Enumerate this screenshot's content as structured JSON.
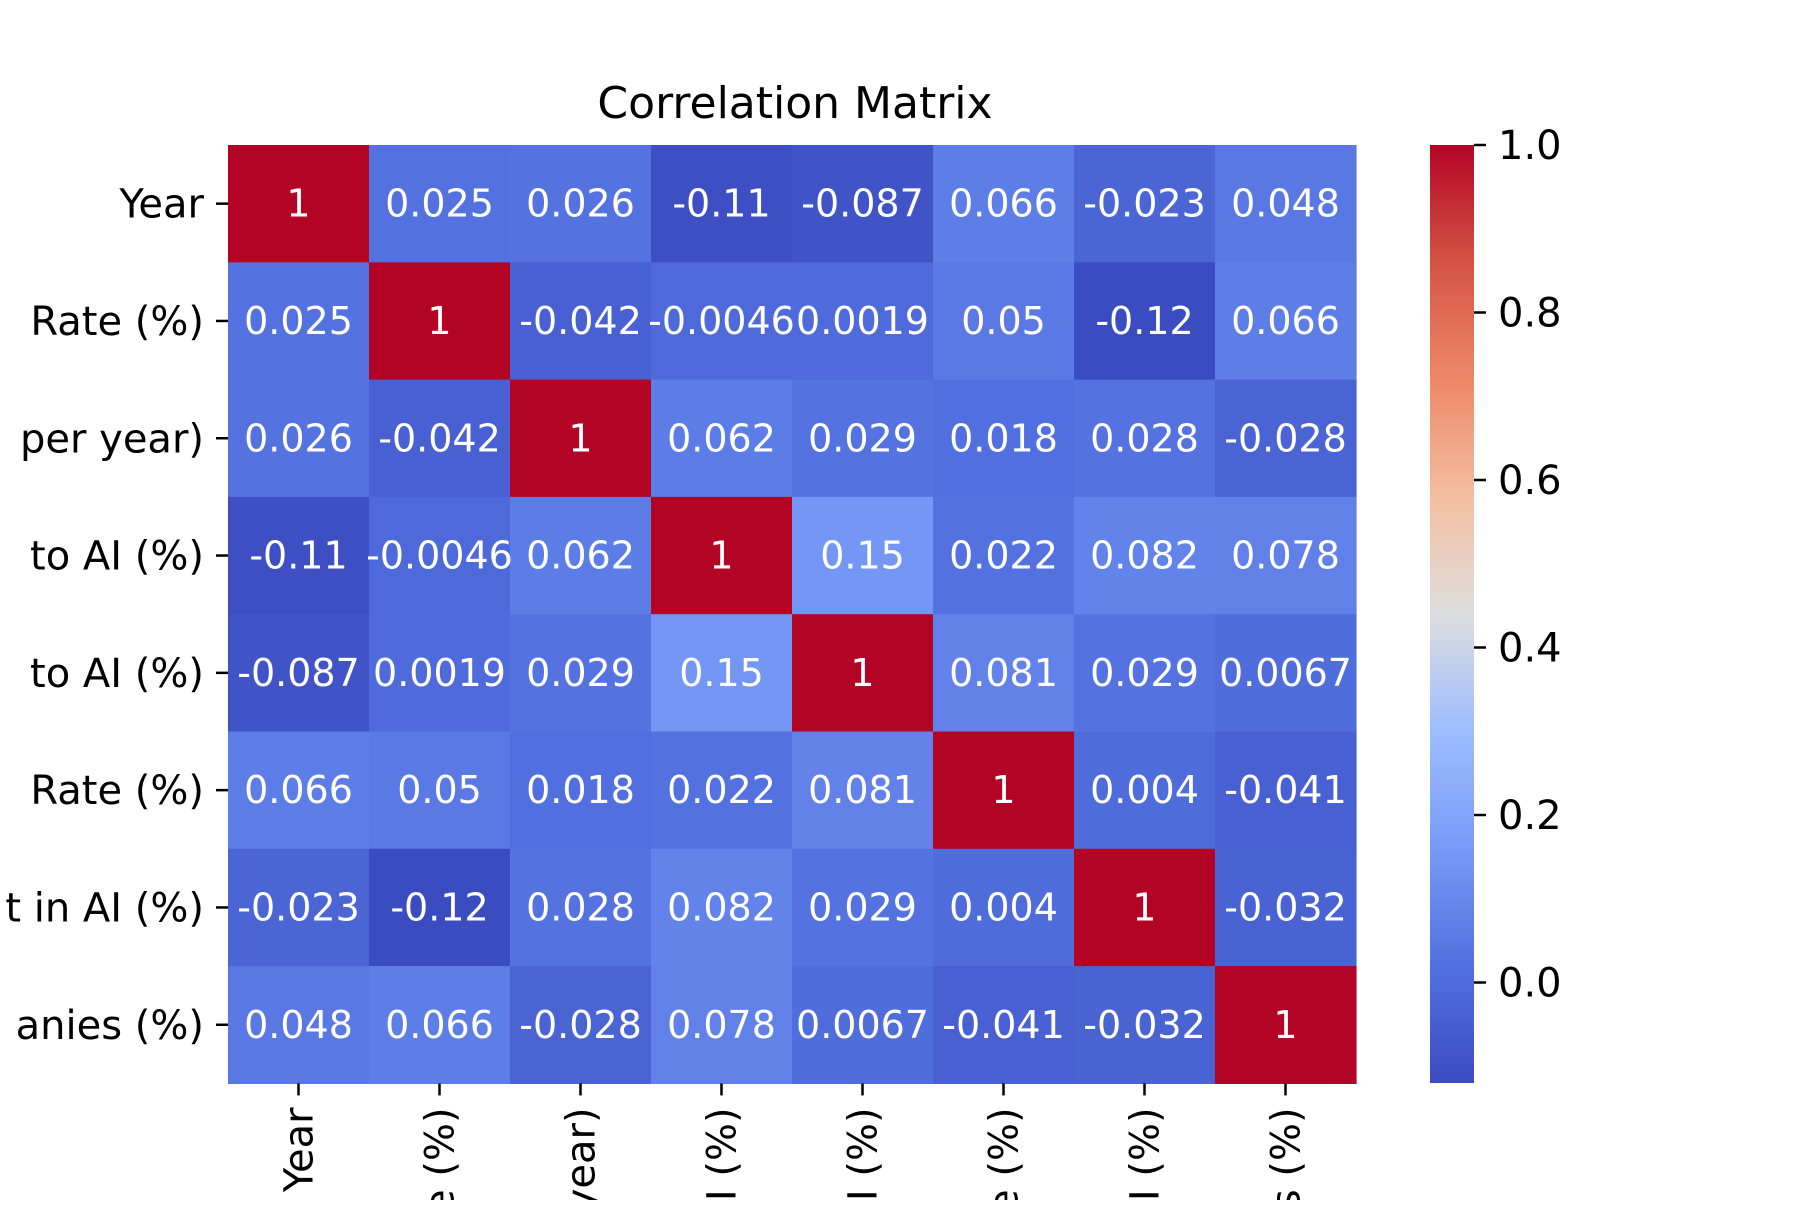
{
  "chart_data": {
    "type": "heatmap",
    "title": "Correlation Matrix",
    "colormap": "coolwarm",
    "row_labels": [
      "Year",
      "Rate (%)",
      "per year)",
      "to AI (%)",
      "to AI (%)",
      "Rate (%)",
      "t in AI (%)",
      "anies (%)"
    ],
    "col_labels": [
      "Year",
      "e (%)",
      "year)",
      "AI (%)",
      "AI (%)",
      "e (%)",
      "AI (%)",
      "s (%)"
    ],
    "values": [
      [
        1,
        0.025,
        0.026,
        -0.11,
        -0.087,
        0.066,
        -0.023,
        0.048
      ],
      [
        0.025,
        1,
        -0.042,
        -0.0046,
        0.0019,
        0.05,
        -0.12,
        0.066
      ],
      [
        0.026,
        -0.042,
        1,
        0.062,
        0.029,
        0.018,
        0.028,
        -0.028
      ],
      [
        -0.11,
        -0.0046,
        0.062,
        1,
        0.15,
        0.022,
        0.082,
        0.078
      ],
      [
        -0.087,
        0.0019,
        0.029,
        0.15,
        1,
        0.081,
        0.029,
        0.0067
      ],
      [
        0.066,
        0.05,
        0.018,
        0.022,
        0.081,
        1,
        0.004,
        -0.041
      ],
      [
        -0.023,
        -0.12,
        0.028,
        0.082,
        0.029,
        0.004,
        1,
        -0.032
      ],
      [
        0.048,
        0.066,
        -0.028,
        0.078,
        0.0067,
        -0.041,
        -0.032,
        1
      ]
    ],
    "color_range": [
      -0.12,
      1.0
    ],
    "colorbar_ticks": [
      0.0,
      0.2,
      0.4,
      0.6,
      0.8,
      1.0
    ],
    "colorbar_tick_labels": [
      "0.0",
      "0.2",
      "0.4",
      "0.6",
      "0.8",
      "1.0"
    ],
    "annotate": true
  }
}
